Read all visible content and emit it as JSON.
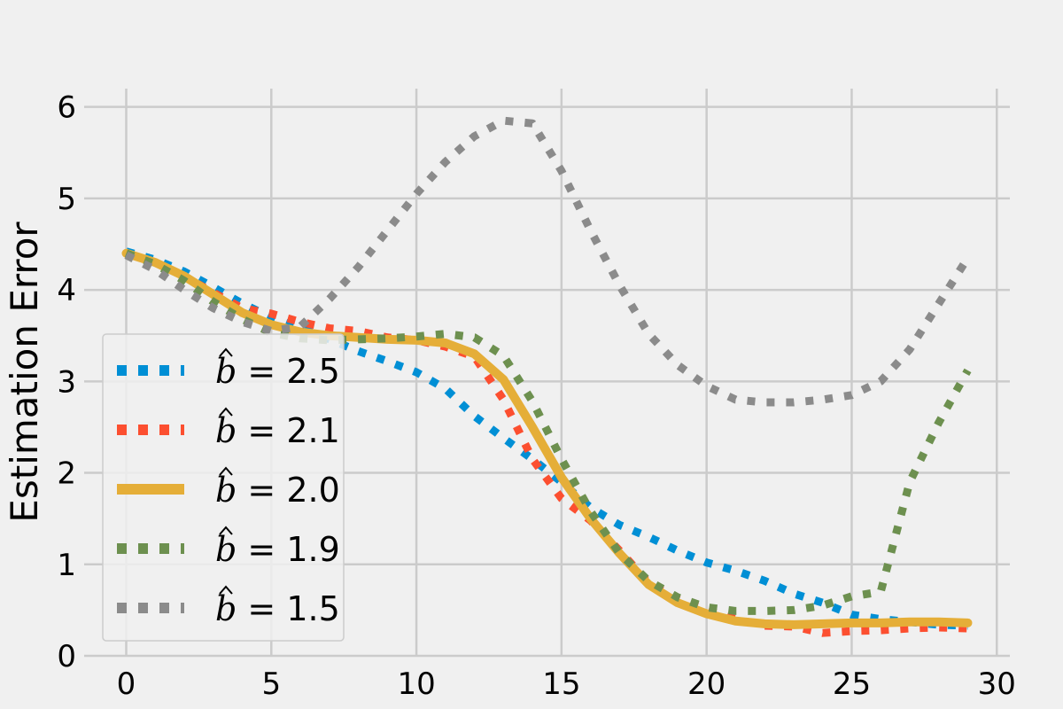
{
  "chart_data": {
    "type": "line",
    "title": "",
    "xlabel": "",
    "ylabel": "Estimation Error",
    "xlim": [
      -1.45,
      30.45
    ],
    "ylim": [
      0,
      6.2
    ],
    "xticks": [
      0,
      5,
      10,
      15,
      20,
      25,
      30
    ],
    "yticks": [
      0,
      1,
      2,
      3,
      4,
      5,
      6
    ],
    "grid": true,
    "legend_position": "lower-left",
    "x": [
      0,
      1,
      2,
      3,
      4,
      5,
      6,
      7,
      8,
      9,
      10,
      11,
      12,
      13,
      14,
      15,
      16,
      17,
      18,
      19,
      20,
      21,
      22,
      23,
      24,
      25,
      26,
      27,
      28,
      29
    ],
    "series": [
      {
        "name": "b̂ = 2.5",
        "legend_var": "b",
        "legend_value": "2.5",
        "color": "#008fd5",
        "style": "dotted",
        "values": [
          4.42,
          4.33,
          4.2,
          4.03,
          3.85,
          3.7,
          3.58,
          3.46,
          3.33,
          3.22,
          3.1,
          2.92,
          2.62,
          2.38,
          2.15,
          1.9,
          1.62,
          1.43,
          1.3,
          1.15,
          1.02,
          0.93,
          0.82,
          0.68,
          0.58,
          0.45,
          0.4,
          0.37,
          0.34,
          0.33
        ]
      },
      {
        "name": "b̂ = 2.1",
        "legend_var": "b",
        "legend_value": "2.1",
        "color": "#fc4f30",
        "style": "dotted",
        "values": [
          4.4,
          4.3,
          4.15,
          3.97,
          3.8,
          3.74,
          3.65,
          3.58,
          3.55,
          3.48,
          3.45,
          3.38,
          3.27,
          2.8,
          2.15,
          1.72,
          1.48,
          1.15,
          0.8,
          0.62,
          0.5,
          0.4,
          0.33,
          0.32,
          0.25,
          0.27,
          0.28,
          0.3,
          0.31,
          0.3
        ]
      },
      {
        "name": "b̂ = 2.0",
        "legend_var": "b",
        "legend_value": "2.0",
        "color": "#e5ae38",
        "style": "solid",
        "values": [
          4.4,
          4.3,
          4.15,
          3.95,
          3.75,
          3.62,
          3.54,
          3.5,
          3.48,
          3.46,
          3.45,
          3.42,
          3.3,
          3.02,
          2.5,
          1.95,
          1.5,
          1.12,
          0.78,
          0.58,
          0.46,
          0.38,
          0.35,
          0.34,
          0.35,
          0.36,
          0.36,
          0.37,
          0.37,
          0.36
        ]
      },
      {
        "name": "b̂ = 1.9",
        "legend_var": "b",
        "legend_value": "1.9",
        "color": "#6d904f",
        "style": "dotted",
        "values": [
          4.4,
          4.28,
          4.1,
          3.87,
          3.68,
          3.53,
          3.47,
          3.45,
          3.46,
          3.47,
          3.49,
          3.52,
          3.48,
          3.28,
          2.78,
          2.15,
          1.58,
          1.12,
          0.82,
          0.64,
          0.53,
          0.49,
          0.49,
          0.5,
          0.55,
          0.65,
          0.7,
          1.9,
          2.55,
          3.12
        ]
      },
      {
        "name": "b̂ = 1.5",
        "legend_var": "b",
        "legend_value": "1.5",
        "color": "#8b8b8b",
        "style": "dotted",
        "values": [
          4.38,
          4.22,
          4.0,
          3.8,
          3.65,
          3.55,
          3.6,
          3.9,
          4.25,
          4.65,
          5.05,
          5.4,
          5.68,
          5.85,
          5.82,
          5.3,
          4.65,
          4.05,
          3.52,
          3.18,
          2.95,
          2.8,
          2.77,
          2.77,
          2.8,
          2.85,
          3.0,
          3.35,
          3.85,
          4.35
        ]
      }
    ]
  }
}
